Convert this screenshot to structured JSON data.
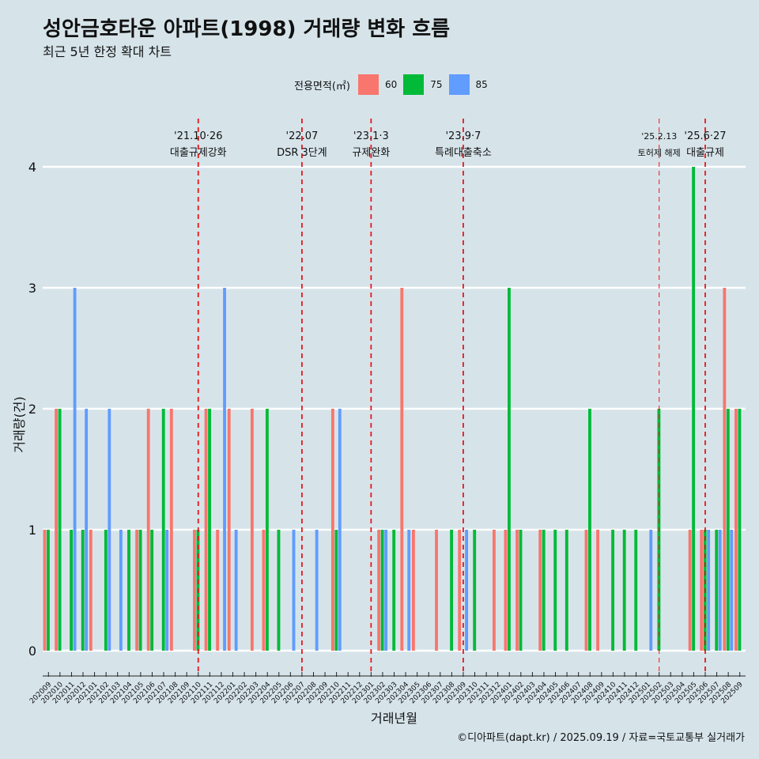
{
  "header": {
    "title": "성안금호타운 아파트(1998) 거래량 변화 흐름",
    "subtitle": "최근 5년 한정 확대 차트"
  },
  "legend": {
    "title": "전용면적(㎡)",
    "items": [
      {
        "label": "60",
        "color": "#f8766d"
      },
      {
        "label": "75",
        "color": "#00ba38"
      },
      {
        "label": "85",
        "color": "#619cff"
      }
    ]
  },
  "caption": "©디아파트(dapt.kr) / 2025.09.19 / 자료=국토교통부 실거래가",
  "chart_data": {
    "type": "bar",
    "xlabel": "거래년월",
    "ylabel": "거래량(건)",
    "ylim": [
      0,
      4
    ],
    "yticks": [
      0,
      1,
      2,
      3,
      4
    ],
    "grid": true,
    "legend_position": "top",
    "months": [
      "202009",
      "202010",
      "202011",
      "202012",
      "202101",
      "202102",
      "202103",
      "202104",
      "202105",
      "202106",
      "202107",
      "202108",
      "202109",
      "202110",
      "202111",
      "202112",
      "202201",
      "202202",
      "202203",
      "202204",
      "202205",
      "202206",
      "202207",
      "202208",
      "202209",
      "202210",
      "202211",
      "202212",
      "202301",
      "202302",
      "202303",
      "202304",
      "202305",
      "202306",
      "202307",
      "202308",
      "202309",
      "202310",
      "202311",
      "202312",
      "202401",
      "202402",
      "202403",
      "202404",
      "202405",
      "202406",
      "202407",
      "202408",
      "202409",
      "202410",
      "202411",
      "202412",
      "202501",
      "202502",
      "202503",
      "202504",
      "202505",
      "202506",
      "202507",
      "202508",
      "202509"
    ],
    "series": [
      {
        "name": "60",
        "color": "#f8766d",
        "values": [
          1,
          2,
          0,
          0,
          1,
          0,
          0,
          0,
          1,
          2,
          0,
          2,
          0,
          1,
          2,
          1,
          2,
          0,
          2,
          1,
          0,
          0,
          0,
          0,
          0,
          2,
          0,
          0,
          0,
          1,
          0,
          3,
          1,
          0,
          1,
          0,
          1,
          0,
          0,
          1,
          1,
          1,
          0,
          1,
          0,
          0,
          0,
          1,
          1,
          0,
          0,
          0,
          0,
          0,
          0,
          0,
          1,
          1,
          0,
          3,
          2
        ]
      },
      {
        "name": "75",
        "color": "#00ba38",
        "values": [
          1,
          2,
          1,
          1,
          0,
          1,
          0,
          1,
          1,
          1,
          2,
          0,
          0,
          1,
          2,
          0,
          0,
          0,
          0,
          2,
          1,
          0,
          0,
          0,
          0,
          1,
          0,
          0,
          0,
          1,
          1,
          0,
          0,
          0,
          0,
          1,
          0,
          1,
          0,
          0,
          3,
          1,
          0,
          1,
          1,
          1,
          0,
          2,
          0,
          1,
          1,
          1,
          0,
          2,
          0,
          0,
          4,
          1,
          1,
          2,
          2
        ]
      },
      {
        "name": "85",
        "color": "#619cff",
        "values": [
          0,
          0,
          3,
          2,
          0,
          2,
          1,
          0,
          0,
          0,
          1,
          0,
          0,
          0,
          0,
          3,
          1,
          0,
          0,
          0,
          0,
          1,
          0,
          1,
          0,
          2,
          0,
          0,
          0,
          1,
          0,
          1,
          0,
          0,
          0,
          0,
          1,
          0,
          0,
          0,
          0,
          0,
          0,
          0,
          0,
          0,
          0,
          0,
          0,
          0,
          0,
          0,
          1,
          0,
          0,
          0,
          0,
          1,
          1,
          1,
          0
        ]
      }
    ],
    "annotations": [
      {
        "month": "202110",
        "date": "'21.10·26",
        "text": "대출규제강화",
        "style": "major"
      },
      {
        "month": "202207",
        "date": "'22.07",
        "text": "DSR 3단계",
        "style": "major"
      },
      {
        "month": "202301",
        "date": "'23.1·3",
        "text": "규제완화",
        "style": "major"
      },
      {
        "month": "202309",
        "date": "'23.9·7",
        "text": "특례대출축소",
        "style": "major"
      },
      {
        "month": "202502",
        "date": "'25.2.13",
        "text": "토허제 해제",
        "style": "minor"
      },
      {
        "month": "202506",
        "date": "'25.6·27",
        "text": "대출규제",
        "style": "major"
      }
    ]
  }
}
